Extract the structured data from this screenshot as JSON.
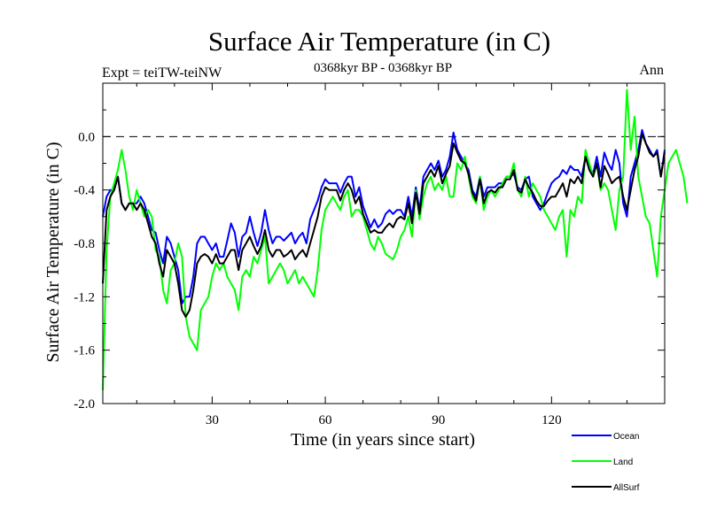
{
  "chart_data": {
    "type": "line",
    "title": "Surface Air Temperature (in C)",
    "subtitle_left": "Expt = teiTW-teiNW",
    "subtitle_center": "0368kyr BP - 0368kyr BP",
    "subtitle_right": "Ann",
    "xlabel": "Time (in years since start)",
    "ylabel": "Surface Air Temperature (in C)",
    "xlim": [
      1,
      150
    ],
    "ylim": [
      -2.0,
      0.4
    ],
    "x_ticks": [
      30,
      60,
      90,
      120
    ],
    "x_tick_labels": [
      "30",
      "60",
      "90",
      "120"
    ],
    "y_ticks": [
      -2.0,
      -1.6,
      -1.2,
      -0.8,
      -0.4,
      0.0
    ],
    "y_tick_labels": [
      "-2.0",
      "-1.6",
      "-1.2",
      "-0.8",
      "-0.4",
      "0.0"
    ],
    "reference_line": 0.0,
    "x_start": 1,
    "series": [
      {
        "name": "Ocean",
        "color": "#0000ff",
        "values": [
          -0.6,
          -0.45,
          -0.4,
          -0.4,
          -0.3,
          -0.5,
          -0.55,
          -0.5,
          -0.5,
          -0.5,
          -0.45,
          -0.5,
          -0.6,
          -0.7,
          -0.72,
          -0.85,
          -0.95,
          -0.75,
          -0.8,
          -0.9,
          -1.0,
          -1.25,
          -1.2,
          -1.2,
          -1.05,
          -0.8,
          -0.75,
          -0.75,
          -0.8,
          -0.85,
          -0.8,
          -0.9,
          -0.9,
          -0.78,
          -0.65,
          -0.72,
          -0.9,
          -0.75,
          -0.72,
          -0.6,
          -0.72,
          -0.82,
          -0.72,
          -0.55,
          -0.7,
          -0.8,
          -0.75,
          -0.75,
          -0.78,
          -0.75,
          -0.72,
          -0.8,
          -0.75,
          -0.72,
          -0.8,
          -0.62,
          -0.55,
          -0.48,
          -0.38,
          -0.32,
          -0.35,
          -0.35,
          -0.35,
          -0.42,
          -0.35,
          -0.3,
          -0.3,
          -0.45,
          -0.38,
          -0.52,
          -0.6,
          -0.68,
          -0.62,
          -0.68,
          -0.65,
          -0.58,
          -0.55,
          -0.58,
          -0.55,
          -0.55,
          -0.6,
          -0.45,
          -0.6,
          -0.38,
          -0.55,
          -0.3,
          -0.25,
          -0.2,
          -0.25,
          -0.18,
          -0.3,
          -0.25,
          -0.15,
          0.03,
          -0.1,
          -0.15,
          -0.2,
          -0.25,
          -0.4,
          -0.45,
          -0.3,
          -0.45,
          -0.38,
          -0.38,
          -0.38,
          -0.35,
          -0.35,
          -0.3,
          -0.3,
          -0.28,
          -0.38,
          -0.4,
          -0.32,
          -0.3,
          -0.45,
          -0.5,
          -0.55,
          -0.5,
          -0.42,
          -0.35,
          -0.32,
          -0.3,
          -0.25,
          -0.28,
          -0.22,
          -0.25,
          -0.25,
          -0.3,
          -0.15,
          -0.22,
          -0.28,
          -0.15,
          -0.3,
          -0.12,
          -0.2,
          -0.25,
          -0.1,
          -0.2,
          -0.5,
          -0.6,
          -0.3,
          -0.2,
          -0.1,
          0.05,
          -0.05,
          -0.1,
          -0.15,
          -0.1,
          -0.3,
          -0.1
        ]
      },
      {
        "name": "Land",
        "color": "#00ff00",
        "values": [
          -1.9,
          -0.85,
          -0.45,
          -0.35,
          -0.25,
          -0.1,
          -0.25,
          -0.45,
          -0.55,
          -0.4,
          -0.5,
          -0.6,
          -0.55,
          -0.6,
          -0.85,
          -0.9,
          -1.15,
          -1.25,
          -1.0,
          -0.95,
          -0.8,
          -0.9,
          -1.35,
          -1.5,
          -1.55,
          -1.6,
          -1.3,
          -1.25,
          -1.2,
          -1.05,
          -0.95,
          -1.0,
          -0.95,
          -1.05,
          -1.1,
          -1.15,
          -1.3,
          -1.05,
          -1.0,
          -1.05,
          -0.9,
          -0.95,
          -0.85,
          -0.75,
          -1.1,
          -1.05,
          -1.0,
          -0.95,
          -1.0,
          -1.1,
          -1.05,
          -1.0,
          -1.1,
          -1.05,
          -1.1,
          -1.15,
          -1.2,
          -1.0,
          -0.7,
          -0.55,
          -0.5,
          -0.45,
          -0.5,
          -0.55,
          -0.45,
          -0.4,
          -0.6,
          -0.55,
          -0.55,
          -0.6,
          -0.7,
          -0.8,
          -0.85,
          -0.75,
          -0.8,
          -0.88,
          -0.9,
          -0.92,
          -0.85,
          -0.75,
          -0.7,
          -0.6,
          -0.75,
          -0.4,
          -0.62,
          -0.45,
          -0.35,
          -0.3,
          -0.4,
          -0.35,
          -0.4,
          -0.3,
          -0.45,
          -0.45,
          -0.2,
          -0.25,
          -0.15,
          -0.3,
          -0.45,
          -0.5,
          -0.3,
          -0.55,
          -0.45,
          -0.4,
          -0.45,
          -0.4,
          -0.35,
          -0.3,
          -0.3,
          -0.2,
          -0.4,
          -0.45,
          -0.3,
          -0.45,
          -0.35,
          -0.4,
          -0.45,
          -0.55,
          -0.6,
          -0.65,
          -0.7,
          -0.6,
          -0.55,
          -0.9,
          -0.55,
          -0.6,
          -0.45,
          -0.5,
          -0.1,
          -0.2,
          -0.3,
          -0.2,
          -0.4,
          -0.35,
          -0.4,
          -0.55,
          -0.7,
          -0.4,
          -0.3,
          0.35,
          -0.1,
          0.15,
          -0.3,
          -0.45,
          -0.6,
          -0.65,
          -0.85,
          -1.05,
          -0.6,
          -0.4,
          -0.2,
          -0.15,
          -0.1,
          -0.2,
          -0.3,
          -0.5
        ]
      },
      {
        "name": "AllSurf",
        "color": "#000000",
        "values": [
          -1.1,
          -0.55,
          -0.45,
          -0.4,
          -0.3,
          -0.5,
          -0.55,
          -0.5,
          -0.5,
          -0.55,
          -0.5,
          -0.55,
          -0.65,
          -0.75,
          -0.8,
          -0.95,
          -1.05,
          -0.85,
          -0.9,
          -0.95,
          -1.1,
          -1.3,
          -1.35,
          -1.3,
          -1.15,
          -0.95,
          -0.9,
          -0.88,
          -0.9,
          -0.95,
          -0.88,
          -0.95,
          -0.95,
          -0.9,
          -0.85,
          -0.85,
          -1.0,
          -0.85,
          -0.8,
          -0.75,
          -0.82,
          -0.88,
          -0.82,
          -0.7,
          -0.85,
          -0.9,
          -0.85,
          -0.85,
          -0.9,
          -0.88,
          -0.85,
          -0.92,
          -0.88,
          -0.85,
          -0.9,
          -0.8,
          -0.7,
          -0.6,
          -0.45,
          -0.38,
          -0.4,
          -0.4,
          -0.4,
          -0.48,
          -0.4,
          -0.35,
          -0.4,
          -0.5,
          -0.45,
          -0.58,
          -0.65,
          -0.72,
          -0.7,
          -0.72,
          -0.72,
          -0.68,
          -0.65,
          -0.68,
          -0.62,
          -0.6,
          -0.62,
          -0.5,
          -0.65,
          -0.42,
          -0.58,
          -0.35,
          -0.3,
          -0.25,
          -0.3,
          -0.22,
          -0.35,
          -0.28,
          -0.22,
          -0.05,
          -0.12,
          -0.18,
          -0.2,
          -0.28,
          -0.42,
          -0.48,
          -0.32,
          -0.5,
          -0.42,
          -0.4,
          -0.42,
          -0.38,
          -0.38,
          -0.32,
          -0.32,
          -0.25,
          -0.4,
          -0.42,
          -0.32,
          -0.38,
          -0.42,
          -0.48,
          -0.52,
          -0.52,
          -0.48,
          -0.45,
          -0.45,
          -0.4,
          -0.35,
          -0.45,
          -0.32,
          -0.35,
          -0.3,
          -0.35,
          -0.15,
          -0.25,
          -0.3,
          -0.2,
          -0.38,
          -0.22,
          -0.28,
          -0.35,
          -0.32,
          -0.3,
          -0.45,
          -0.55,
          -0.4,
          -0.25,
          -0.15,
          0.02,
          -0.05,
          -0.12,
          -0.15,
          -0.12,
          -0.3,
          -0.12
        ]
      }
    ],
    "legend": {
      "placement": "bottom-right",
      "entries": [
        "Ocean",
        "Land",
        "AllSurf"
      ]
    }
  }
}
